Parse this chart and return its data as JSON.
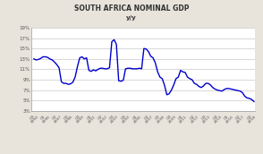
{
  "title": "SOUTH AFRICA NOMINAL GDP",
  "subtitle": "y/y",
  "line_color": "#0000cc",
  "background_color": "#e8e4dc",
  "plot_bg_color": "#ffffff",
  "ylim": [
    3,
    19
  ],
  "yticks": [
    3,
    5,
    7,
    9,
    11,
    13,
    15,
    17,
    19
  ],
  "ytick_labels": [
    "3%",
    "5%",
    "7%",
    "9%",
    "11%",
    "13%",
    "15%",
    "17%",
    "19%"
  ],
  "x_tick_labels": [
    "Q4 1994",
    "Q1 1996",
    "Q2 1997",
    "Q3 1998",
    "Q4 1999",
    "Q1 2001",
    "Q2 2002",
    "Q3 2003",
    "Q4 2004",
    "Q1 2006",
    "Q2 2007",
    "Q3 2008",
    "Q4 2009",
    "Q1 2011",
    "Q2 2012",
    "Q3 2013",
    "Q4 2014",
    "Q1 2016",
    "Q2 2017",
    "Q3 2018"
  ],
  "quarters": [
    13.0,
    12.8,
    12.9,
    13.1,
    13.4,
    13.4,
    13.3,
    13.0,
    12.8,
    12.4,
    11.9,
    11.3,
    8.6,
    8.3,
    8.3,
    8.1,
    8.2,
    8.5,
    9.5,
    11.5,
    13.2,
    13.4,
    13.0,
    13.2,
    10.8,
    10.6,
    10.9,
    10.7,
    11.0,
    11.2,
    11.2,
    11.1,
    11.1,
    11.3,
    16.3,
    16.7,
    15.8,
    8.8,
    8.7,
    8.9,
    11.1,
    11.2,
    11.2,
    11.1,
    11.1,
    11.1,
    11.2,
    11.1,
    15.0,
    14.9,
    14.4,
    13.5,
    13.2,
    12.2,
    10.5,
    9.5,
    9.2,
    7.9,
    6.1,
    6.3,
    7.0,
    8.0,
    9.2,
    9.5,
    10.8,
    10.5,
    10.4,
    9.5,
    9.2,
    9.0,
    8.3,
    8.1,
    7.7,
    7.5,
    7.8,
    8.3,
    8.3,
    8.0,
    7.5,
    7.2,
    7.0,
    6.9,
    6.8,
    7.1,
    7.3,
    7.3,
    7.2,
    7.1,
    7.0,
    6.9,
    6.8,
    6.5,
    5.8,
    5.5,
    5.4,
    5.2,
    4.8
  ]
}
